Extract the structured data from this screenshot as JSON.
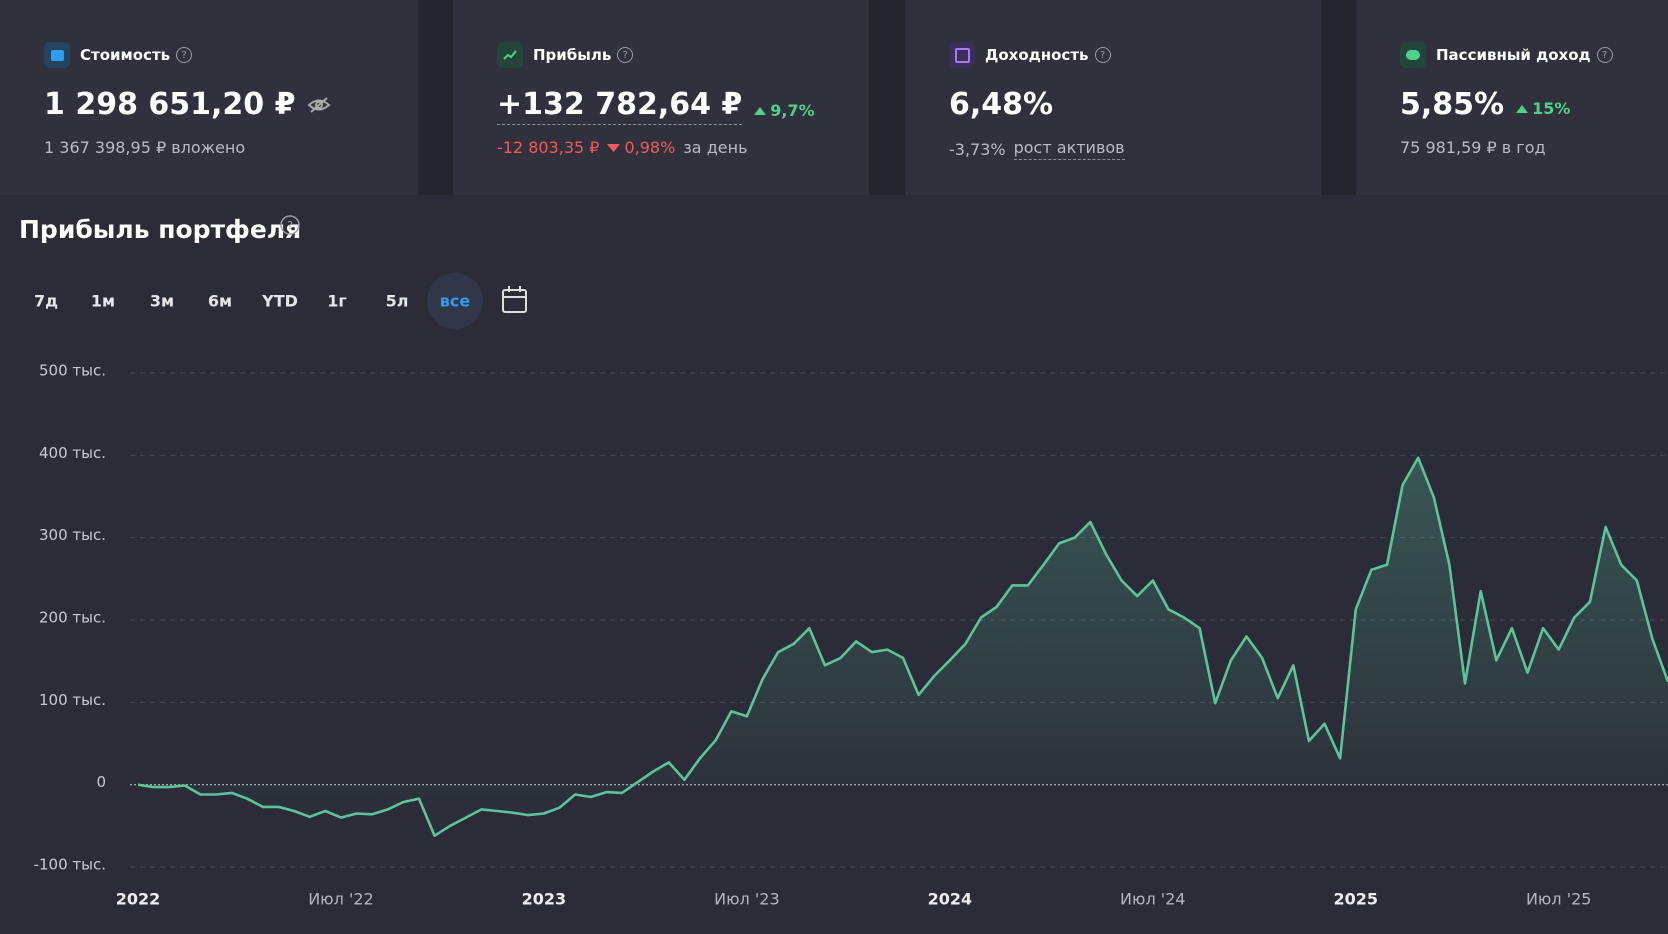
{
  "cards": [
    {
      "title": "Стоимость",
      "value": "1 298 651,20 ₽",
      "subtitle": "1 367 398,95 ₽ вложено"
    },
    {
      "title": "Прибыль",
      "value": "+132 782,64 ₽",
      "change": "9,7%",
      "day_change": "-12 803,35 ₽",
      "day_change_pct": "0,98%",
      "day_label": "за день"
    },
    {
      "title": "Доходность",
      "value": "6,48%",
      "change_sub": "-3,73%",
      "subtitle": "рост активов"
    },
    {
      "title": "Пассивный доход",
      "value": "5,85%",
      "change": "15%",
      "subtitle": "75 981,59 ₽ в год"
    }
  ],
  "periods": [
    "7д",
    "1м",
    "3м",
    "6м",
    "YTD",
    "1г",
    "5л",
    "все"
  ],
  "chart_data": {
    "type": "area",
    "title": "Прибыль портфеля",
    "color": "#5cc49a",
    "categories": [
      "2022",
      null,
      null,
      null,
      null,
      null,
      null,
      null,
      null,
      null,
      null,
      null,
      null,
      "Июл '22",
      null,
      null,
      null,
      null,
      null,
      null,
      null,
      null,
      null,
      null,
      null,
      null,
      "2023",
      null,
      null,
      null,
      null,
      null,
      null,
      null,
      null,
      null,
      null,
      null,
      null,
      "Июл '23",
      null,
      null,
      null,
      null,
      null,
      null,
      null,
      null,
      null,
      null,
      null,
      null,
      "2024",
      null,
      null,
      null,
      null,
      null,
      null,
      null,
      null,
      null,
      null,
      null,
      null,
      "Июл '24",
      null,
      null,
      null,
      null,
      null,
      null,
      null,
      null,
      null,
      null,
      null,
      null,
      "2025",
      null,
      null,
      null,
      null,
      null,
      null,
      null,
      null,
      null,
      null,
      null,
      null,
      "Июл '25",
      null,
      null,
      null,
      null,
      null,
      null,
      null
    ],
    "values": [
      0,
      -3,
      -3,
      -1,
      -12,
      -12,
      -10,
      -17,
      -27,
      -27,
      -32,
      -39,
      -32,
      -40,
      -35,
      -36,
      -30,
      -21,
      -17,
      -62,
      -50,
      -40,
      -30,
      -32,
      -34,
      -37,
      -35,
      -28,
      -12,
      -15,
      -9,
      -10,
      3,
      16,
      27,
      6,
      32,
      54,
      89,
      83,
      128,
      161,
      171,
      190,
      145,
      154,
      174,
      161,
      164,
      154,
      109,
      132,
      151,
      171,
      203,
      216,
      242,
      242,
      267,
      293,
      300,
      319,
      280,
      248,
      229,
      248,
      213,
      203,
      190,
      99,
      151,
      180,
      154,
      105,
      145,
      53,
      74,
      32,
      213,
      261,
      267,
      364,
      397,
      349,
      267,
      123,
      235,
      151,
      190,
      136,
      190,
      164,
      203,
      222,
      313,
      267,
      248,
      177,
      125
    ],
    "ylim": [
      -100,
      500
    ],
    "yticks": [
      {
        "value": -100,
        "label": "-100 тыс."
      },
      0,
      {
        "value": 100,
        "label": "100 тыс."
      },
      {
        "value": 200,
        "label": "200 тыс."
      },
      {
        "value": 300,
        "label": "300 тыс."
      },
      {
        "value": 400,
        "label": "400 тыс."
      },
      {
        "value": 500,
        "label": "500 тыс."
      }
    ],
    "grid": true
  }
}
